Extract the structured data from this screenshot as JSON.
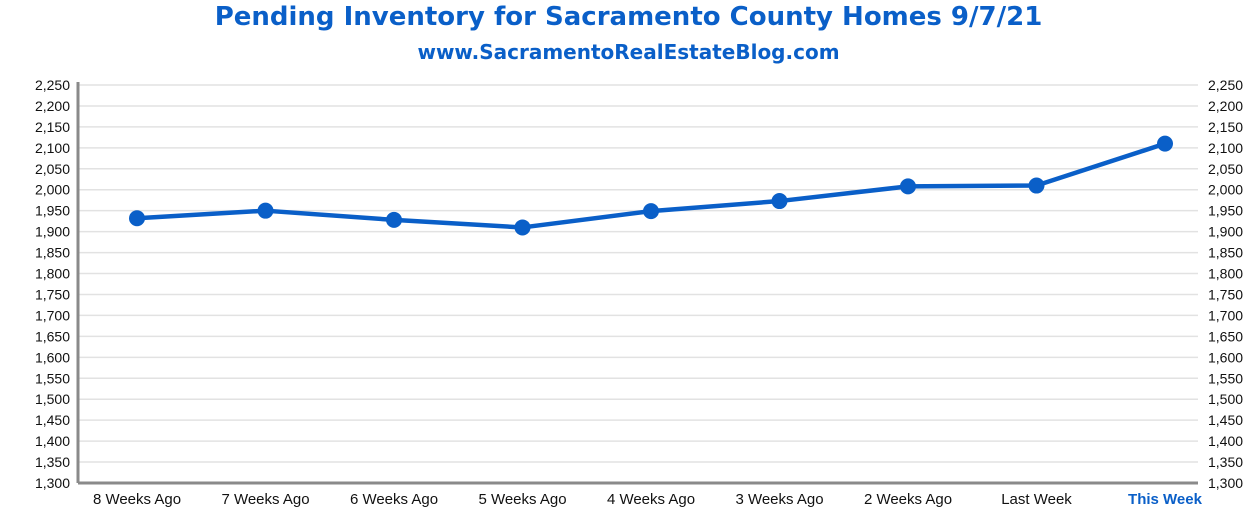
{
  "colors": {
    "accent": "#0a5fc8",
    "grid": "#e2e2e2",
    "axis": "#8a8a8a",
    "text": "#111111"
  },
  "chart_data": {
    "type": "line",
    "title": "Pending Inventory for Sacramento County Homes 9/7/21",
    "subtitle": "www.SacramentoRealEstateBlog.com",
    "categories": [
      "8 Weeks Ago",
      "7 Weeks Ago",
      "6 Weeks Ago",
      "5 Weeks Ago",
      "4 Weeks Ago",
      "3 Weeks Ago",
      "2 Weeks Ago",
      "Last Week",
      "This Week"
    ],
    "highlight_category": "This Week",
    "series": [
      {
        "values": [
          1932,
          1950,
          1928,
          1910,
          1949,
          1973,
          2008,
          2010,
          2110
        ]
      }
    ],
    "ylim": [
      1300,
      2250
    ],
    "yticks": [
      "1,300",
      "1,350",
      "1,400",
      "1,450",
      "1,500",
      "1,550",
      "1,600",
      "1,650",
      "1,700",
      "1,750",
      "1,800",
      "1,850",
      "1,900",
      "1,950",
      "2,000",
      "2,050",
      "2,100",
      "2,150",
      "2,200",
      "2,250"
    ],
    "grid": true,
    "y_axis_both_sides": true
  }
}
